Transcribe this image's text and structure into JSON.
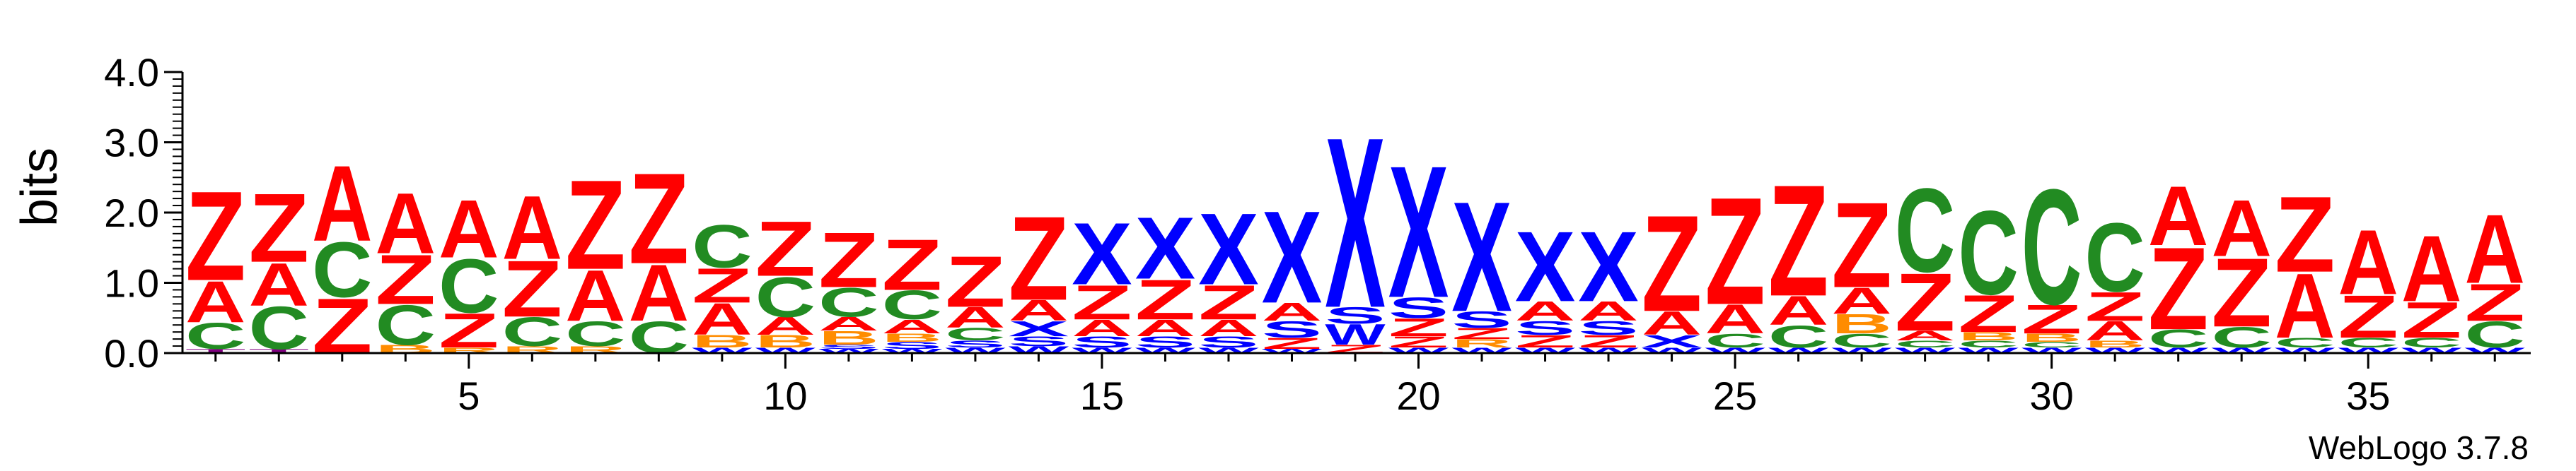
{
  "chart_data": {
    "type": "sequence_logo",
    "ylabel": "bits",
    "ylim": [
      0,
      4.0
    ],
    "y_ticks": [
      "0.0",
      "1.0",
      "2.0",
      "3.0",
      "4.0"
    ],
    "x_ticks": [
      5,
      10,
      15,
      20,
      25,
      30,
      35
    ],
    "positions": [
      1,
      2,
      3,
      4,
      5,
      6,
      7,
      8,
      9,
      10,
      11,
      12,
      13,
      14,
      15,
      16,
      17,
      18,
      19,
      20,
      21,
      22,
      23,
      24,
      25,
      26,
      27,
      28,
      29,
      30,
      31,
      32,
      33,
      34,
      35,
      36,
      37
    ],
    "colors": {
      "Z": "#ff0000",
      "A": "#ff0000",
      "X": "#0000ff",
      "S": "#0000ff",
      "W": "#0000ff",
      "C": "#228b22",
      "B": "#ff8c00",
      "R": "#ff8c00",
      "T": "#800080"
    },
    "columns": [
      [
        [
          "T",
          0.06
        ],
        [
          "C",
          0.38
        ],
        [
          "A",
          0.6
        ],
        [
          "Z",
          1.3
        ]
      ],
      [
        [
          "T",
          0.06
        ],
        [
          "C",
          0.62
        ],
        [
          "A",
          0.62
        ],
        [
          "Z",
          1.0
        ]
      ],
      [
        [
          "Z",
          0.8
        ],
        [
          "C",
          0.8
        ],
        [
          "A",
          1.1
        ]
      ],
      [
        [
          "B",
          0.12
        ],
        [
          "C",
          0.58
        ],
        [
          "Z",
          0.72
        ],
        [
          "A",
          0.88
        ]
      ],
      [
        [
          "R",
          0.08
        ],
        [
          "Z",
          0.5
        ],
        [
          "C",
          0.78
        ],
        [
          "A",
          0.84
        ]
      ],
      [
        [
          "R",
          0.1
        ],
        [
          "C",
          0.42
        ],
        [
          "Z",
          0.82
        ],
        [
          "A",
          0.92
        ]
      ],
      [
        [
          "R",
          0.1
        ],
        [
          "C",
          0.36
        ],
        [
          "A",
          0.74
        ],
        [
          "Z",
          1.3
        ]
      ],
      [
        [
          "C",
          0.46
        ],
        [
          "A",
          0.82
        ],
        [
          "Z",
          1.32
        ]
      ],
      [
        [
          "W",
          0.08
        ],
        [
          "B",
          0.18
        ],
        [
          "A",
          0.46
        ],
        [
          "Z",
          0.5
        ],
        [
          "C",
          0.62
        ]
      ],
      [
        [
          "W",
          0.08
        ],
        [
          "B",
          0.18
        ],
        [
          "A",
          0.26
        ],
        [
          "C",
          0.58
        ],
        [
          "Z",
          0.8
        ]
      ],
      [
        [
          "W",
          0.06
        ],
        [
          "S",
          0.06
        ],
        [
          "B",
          0.2
        ],
        [
          "A",
          0.2
        ],
        [
          "C",
          0.42
        ],
        [
          "Z",
          0.8
        ]
      ],
      [
        [
          "W",
          0.06
        ],
        [
          "S",
          0.1
        ],
        [
          "B",
          0.12
        ],
        [
          "A",
          0.2
        ],
        [
          "C",
          0.42
        ],
        [
          "Z",
          0.74
        ]
      ],
      [
        [
          "W",
          0.08
        ],
        [
          "S",
          0.1
        ],
        [
          "C",
          0.18
        ],
        [
          "A",
          0.3
        ],
        [
          "Z",
          0.74
        ]
      ],
      [
        [
          "W",
          0.1
        ],
        [
          "S",
          0.14
        ],
        [
          "X",
          0.22
        ],
        [
          "A",
          0.3
        ],
        [
          "Z",
          1.22
        ]
      ],
      [
        [
          "W",
          0.08
        ],
        [
          "S",
          0.16
        ],
        [
          "A",
          0.24
        ],
        [
          "Z",
          0.5
        ],
        [
          "X",
          0.9
        ]
      ],
      [
        [
          "W",
          0.08
        ],
        [
          "S",
          0.16
        ],
        [
          "A",
          0.24
        ],
        [
          "Z",
          0.58
        ],
        [
          "X",
          0.9
        ]
      ],
      [
        [
          "W",
          0.08
        ],
        [
          "S",
          0.16
        ],
        [
          "A",
          0.24
        ],
        [
          "Z",
          0.5
        ],
        [
          "X",
          1.04
        ]
      ],
      [
        [
          "W",
          0.06
        ],
        [
          "Z",
          0.16
        ],
        [
          "S",
          0.24
        ],
        [
          "A",
          0.26
        ],
        [
          "X",
          1.34
        ]
      ],
      [
        [
          "Z",
          0.12
        ],
        [
          "W",
          0.3
        ],
        [
          "S",
          0.24
        ],
        [
          "X",
          2.48
        ]
      ],
      [
        [
          "W",
          0.08
        ],
        [
          "Z",
          0.16
        ],
        [
          "Z",
          0.26
        ],
        [
          "S",
          0.3
        ],
        [
          "X",
          1.92
        ]
      ],
      [
        [
          "W",
          0.08
        ],
        [
          "R",
          0.12
        ],
        [
          "Z",
          0.16
        ],
        [
          "S",
          0.24
        ],
        [
          "X",
          1.6
        ]
      ],
      [
        [
          "W",
          0.08
        ],
        [
          "Z",
          0.18
        ],
        [
          "S",
          0.2
        ],
        [
          "A",
          0.28
        ],
        [
          "X",
          1.02
        ]
      ],
      [
        [
          "W",
          0.08
        ],
        [
          "Z",
          0.18
        ],
        [
          "S",
          0.2
        ],
        [
          "A",
          0.28
        ],
        [
          "X",
          1.02
        ]
      ],
      [
        [
          "W",
          0.08
        ],
        [
          "X",
          0.18
        ],
        [
          "A",
          0.34
        ],
        [
          "Z",
          1.4
        ]
      ],
      [
        [
          "W",
          0.08
        ],
        [
          "C",
          0.2
        ],
        [
          "A",
          0.42
        ],
        [
          "Z",
          1.56
        ]
      ],
      [
        [
          "W",
          0.08
        ],
        [
          "C",
          0.32
        ],
        [
          "A",
          0.42
        ],
        [
          "Z",
          1.62
        ]
      ],
      [
        [
          "W",
          0.08
        ],
        [
          "C",
          0.2
        ],
        [
          "B",
          0.28
        ],
        [
          "A",
          0.38
        ],
        [
          "Z",
          1.24
        ]
      ],
      [
        [
          "W",
          0.08
        ],
        [
          "C",
          0.1
        ],
        [
          "A",
          0.14
        ],
        [
          "Z",
          0.84
        ],
        [
          "C",
          1.22
        ]
      ],
      [
        [
          "W",
          0.08
        ],
        [
          "C",
          0.1
        ],
        [
          "B",
          0.12
        ],
        [
          "Z",
          0.54
        ],
        [
          "C",
          1.22
        ]
      ],
      [
        [
          "W",
          0.08
        ],
        [
          "C",
          0.08
        ],
        [
          "B",
          0.12
        ],
        [
          "Z",
          0.42
        ],
        [
          "C",
          1.68
        ]
      ],
      [
        [
          "W",
          0.08
        ],
        [
          "B",
          0.1
        ],
        [
          "A",
          0.28
        ],
        [
          "Z",
          0.42
        ],
        [
          "C",
          1.0
        ]
      ],
      [
        [
          "W",
          0.08
        ],
        [
          "C",
          0.26
        ],
        [
          "Z",
          1.2
        ],
        [
          "A",
          0.86
        ]
      ],
      [
        [
          "W",
          0.08
        ],
        [
          "C",
          0.3
        ],
        [
          "Z",
          1.0
        ],
        [
          "A",
          0.82
        ]
      ],
      [
        [
          "W",
          0.08
        ],
        [
          "C",
          0.14
        ],
        [
          "A",
          0.94
        ],
        [
          "Z",
          1.1
        ]
      ],
      [
        [
          "W",
          0.08
        ],
        [
          "C",
          0.14
        ],
        [
          "Z",
          0.62
        ],
        [
          "A",
          0.94
        ]
      ],
      [
        [
          "W",
          0.08
        ],
        [
          "C",
          0.14
        ],
        [
          "Z",
          0.52
        ],
        [
          "A",
          0.96
        ]
      ],
      [
        [
          "W",
          0.08
        ],
        [
          "C",
          0.38
        ],
        [
          "Z",
          0.54
        ],
        [
          "A",
          1.0
        ]
      ]
    ]
  },
  "footer": {
    "credit": "WebLogo 3.7.8"
  }
}
